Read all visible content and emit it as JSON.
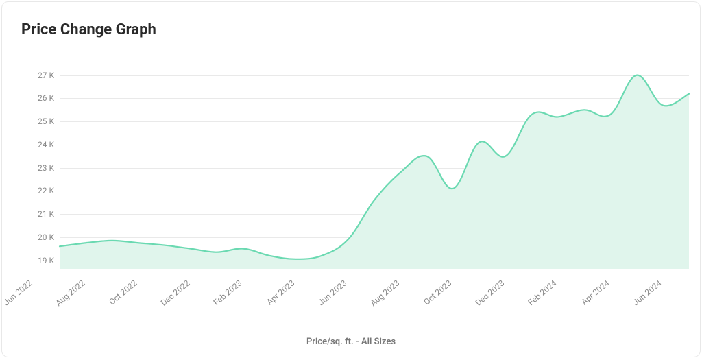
{
  "title": "Price Change Graph",
  "x_caption": "Price/sq. ft. - All Sizes",
  "chart": {
    "type": "area",
    "line_color": "#6ad9b1",
    "fill_color": "#e0f5ec",
    "line_width": 2.2,
    "background_color": "#ffffff",
    "grid_color": "#e9e9e9",
    "axis_label_color": "#8a8a8a",
    "axis_label_fontsize": 12,
    "ylim": [
      18600,
      27200
    ],
    "y_ticks": [
      19000,
      20000,
      21000,
      22000,
      23000,
      24000,
      25000,
      26000,
      27000
    ],
    "y_tick_labels": [
      "19 K",
      "20 K",
      "21 K",
      "22 K",
      "23 K",
      "24 K",
      "25 K",
      "26 K",
      "27 K"
    ],
    "x_ticks_idx": [
      0,
      2,
      4,
      6,
      8,
      10,
      12,
      14,
      16,
      18,
      20,
      22,
      24
    ],
    "x_tick_labels": [
      "Jun 2022",
      "Aug 2022",
      "Oct 2022",
      "Dec 2022",
      "Feb 2023",
      "Apr 2023",
      "Jun 2023",
      "Aug 2023",
      "Oct 2023",
      "Dec 2023",
      "Feb 2024",
      "Apr 2024",
      "Jun 2024"
    ],
    "x_label_rotation_deg": -40,
    "smooth": true,
    "series": {
      "values": [
        19600,
        19750,
        19850,
        19750,
        19650,
        19500,
        19350,
        19500,
        19200,
        19050,
        19200,
        19900,
        21600,
        22800,
        23500,
        22100,
        24100,
        23500,
        25300,
        25200,
        25500,
        25300,
        27000,
        25700,
        26200
      ]
    }
  }
}
